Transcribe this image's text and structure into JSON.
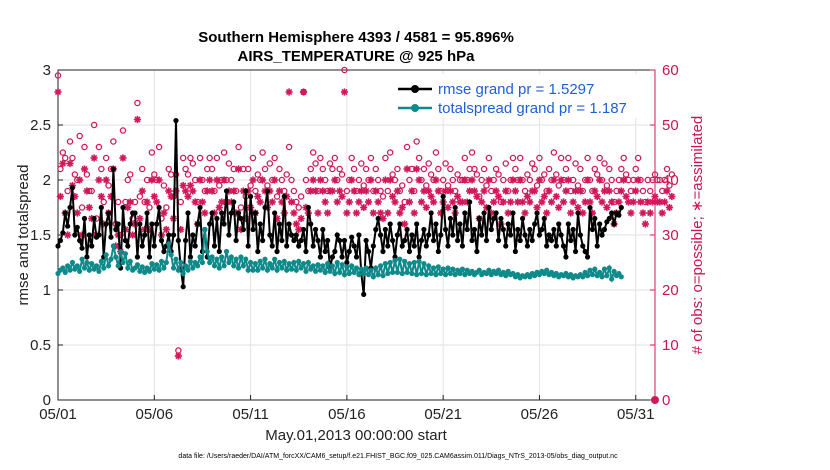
{
  "colors": {
    "rmse": "#000000",
    "spread": "#0e8a8a",
    "obs": "#d0185a",
    "grid": "#e2e2e2",
    "legend_text": "#1f5fd6"
  },
  "chart_data": {
    "type": "line",
    "title": "Southern Hemisphere 4393 / 4581 = 95.896%",
    "subtitle": "AIRS_TEMPERATURE @ 925 hPa",
    "xlabel": "May.01,2013 00:00:00 start",
    "ylabel_left": "rmse and totalspread",
    "ylabel_right": "# of obs: o=possible; ∗=assimilated",
    "footnote": "data file: /Users/raeder/DAI/ATM_forcXX/CAM6_setup/f.e21.FHIST_BGC.f09_025.CAM6assim.011/Diags_NTrS_2013-05/obs_diag_output.nc",
    "x_range": [
      1,
      32
    ],
    "ylim_left": [
      0,
      3
    ],
    "ylim_right": [
      0,
      60
    ],
    "x_ticks": [
      {
        "value": 1,
        "label": "05/01"
      },
      {
        "value": 6,
        "label": "05/06"
      },
      {
        "value": 11,
        "label": "05/11"
      },
      {
        "value": 16,
        "label": "05/16"
      },
      {
        "value": 21,
        "label": "05/21"
      },
      {
        "value": 26,
        "label": "05/26"
      },
      {
        "value": 31,
        "label": "05/31"
      }
    ],
    "y_ticks_left": [
      {
        "value": 0,
        "label": "0"
      },
      {
        "value": 0.5,
        "label": "0.5"
      },
      {
        "value": 1,
        "label": "1"
      },
      {
        "value": 1.5,
        "label": "1.5"
      },
      {
        "value": 2,
        "label": "2"
      },
      {
        "value": 2.5,
        "label": "2.5"
      },
      {
        "value": 3,
        "label": "3"
      }
    ],
    "y_ticks_right": [
      {
        "value": 0,
        "label": "0"
      },
      {
        "value": 10,
        "label": "10"
      },
      {
        "value": 20,
        "label": "20"
      },
      {
        "value": 30,
        "label": "30"
      },
      {
        "value": 40,
        "label": "40"
      },
      {
        "value": 50,
        "label": "50"
      },
      {
        "value": 60,
        "label": "60"
      }
    ],
    "legend": {
      "position": "top-right",
      "entries": [
        {
          "series": "rmse",
          "label": "rmse grand pr = 1.5297"
        },
        {
          "series": "spread",
          "label": "totalspread grand pr = 1.187"
        }
      ]
    },
    "x_step": 0.125,
    "series": [
      {
        "name": "rmse",
        "axis": "left",
        "marker": "filled-circle",
        "values": [
          1.4,
          1.45,
          1.52,
          1.7,
          1.58,
          1.75,
          1.93,
          1.5,
          1.57,
          1.45,
          1.38,
          1.65,
          1.3,
          1.5,
          1.4,
          1.65,
          1.48,
          1.5,
          1.75,
          1.3,
          1.6,
          1.7,
          1.48,
          2.1,
          1.55,
          1.6,
          1.2,
          1.75,
          1.45,
          1.4,
          1.6,
          1.7,
          1.7,
          1.3,
          1.6,
          1.4,
          1.5,
          1.7,
          1.3,
          1.6,
          1.4,
          1.6,
          1.75,
          1.45,
          1.35,
          1.4,
          1.5,
          1.35,
          1.5,
          2.54,
          1.45,
          1.2,
          1.03,
          1.45,
          1.7,
          1.3,
          1.5,
          1.4,
          1.6,
          1.75,
          1.35,
          1.55,
          1.3,
          1.6,
          1.7,
          1.4,
          1.65,
          1.35,
          1.7,
          1.6,
          1.9,
          1.5,
          1.7,
          1.8,
          1.45,
          1.7,
          1.65,
          1.55,
          1.9,
          1.4,
          1.85,
          1.55,
          1.7,
          1.35,
          1.6,
          1.45,
          1.75,
          1.9,
          1.5,
          1.4,
          1.7,
          1.35,
          1.6,
          1.45,
          1.85,
          1.4,
          1.6,
          1.5,
          1.45,
          1.5,
          1.4,
          1.45,
          1.55,
          1.35,
          1.75,
          1.6,
          1.4,
          1.55,
          1.45,
          1.3,
          1.55,
          1.35,
          1.45,
          1.2,
          1.3,
          1.35,
          1.5,
          1.45,
          1.3,
          1.45,
          1.25,
          1.35,
          1.48,
          1.4,
          1.3,
          1.5,
          1.15,
          0.96,
          1.45,
          1.35,
          1.2,
          1.4,
          1.55,
          1.65,
          1.5,
          1.35,
          1.55,
          1.4,
          1.6,
          1.45,
          1.3,
          1.5,
          1.6,
          1.4,
          1.45,
          1.55,
          1.35,
          1.5,
          1.4,
          1.6,
          1.3,
          1.45,
          1.55,
          1.4,
          1.5,
          1.7,
          1.45,
          1.6,
          1.35,
          1.5,
          1.85,
          1.55,
          1.4,
          1.65,
          1.5,
          1.75,
          1.45,
          1.6,
          1.4,
          1.7,
          1.55,
          1.8,
          1.45,
          1.55,
          1.35,
          1.65,
          1.5,
          1.7,
          1.45,
          1.75,
          1.55,
          1.65,
          1.7,
          1.45,
          1.65,
          1.55,
          1.4,
          1.6,
          1.5,
          1.7,
          1.35,
          1.55,
          1.45,
          1.65,
          1.5,
          1.4,
          1.55,
          1.45,
          1.6,
          1.7,
          1.5,
          1.55,
          1.65,
          1.4,
          1.5,
          1.45,
          1.55,
          1.4,
          1.6,
          1.5,
          1.4,
          1.3,
          1.6,
          1.45,
          1.55,
          1.35,
          1.7,
          1.5,
          1.4,
          1.35,
          1.3,
          1.75,
          1.55,
          1.65,
          1.4,
          1.6,
          1.5,
          1.55,
          1.62,
          1.65,
          1.7,
          1.6,
          1.7,
          1.68,
          1.75
        ]
      },
      {
        "name": "spread",
        "axis": "left",
        "marker": "filled-circle",
        "values": [
          1.15,
          1.18,
          1.2,
          1.16,
          1.22,
          1.18,
          1.25,
          1.19,
          1.22,
          1.17,
          1.28,
          1.2,
          1.25,
          1.18,
          1.24,
          1.19,
          1.22,
          1.17,
          1.26,
          1.2,
          1.32,
          1.22,
          1.28,
          1.4,
          1.3,
          1.22,
          1.35,
          1.25,
          1.33,
          1.2,
          1.26,
          1.18,
          1.2,
          1.23,
          1.17,
          1.21,
          1.16,
          1.2,
          1.17,
          1.24,
          1.19,
          1.23,
          1.18,
          1.26,
          1.2,
          1.25,
          1.42,
          1.32,
          1.2,
          1.28,
          1.18,
          1.25,
          1.15,
          1.22,
          1.18,
          1.26,
          1.2,
          1.25,
          1.22,
          1.3,
          1.25,
          1.55,
          1.35,
          1.25,
          1.3,
          1.22,
          1.28,
          1.2,
          1.3,
          1.22,
          1.35,
          1.25,
          1.3,
          1.22,
          1.28,
          1.2,
          1.3,
          1.22,
          1.28,
          1.18,
          1.25,
          1.18,
          1.24,
          1.18,
          1.26,
          1.2,
          1.28,
          1.18,
          1.24,
          1.2,
          1.28,
          1.18,
          1.25,
          1.2,
          1.26,
          1.18,
          1.24,
          1.19,
          1.25,
          1.18,
          1.26,
          1.2,
          1.24,
          1.17,
          1.25,
          1.19,
          1.22,
          1.17,
          1.23,
          1.18,
          1.22,
          1.16,
          1.24,
          1.17,
          1.22,
          1.15,
          1.25,
          1.16,
          1.23,
          1.14,
          1.21,
          1.15,
          1.22,
          1.16,
          1.2,
          1.14,
          1.19,
          1.15,
          1.2,
          1.14,
          1.18,
          1.12,
          1.2,
          1.14,
          1.22,
          1.13,
          1.24,
          1.15,
          1.25,
          1.16,
          1.27,
          1.16,
          1.28,
          1.15,
          1.26,
          1.16,
          1.24,
          1.15,
          1.25,
          1.14,
          1.26,
          1.15,
          1.24,
          1.14,
          1.22,
          1.15,
          1.2,
          1.14,
          1.21,
          1.15,
          1.19,
          1.14,
          1.2,
          1.15,
          1.19,
          1.14,
          1.18,
          1.15,
          1.19,
          1.14,
          1.18,
          1.15,
          1.17,
          1.14,
          1.16,
          1.18,
          1.14,
          1.16,
          1.15,
          1.18,
          1.14,
          1.17,
          1.15,
          1.18,
          1.14,
          1.16,
          1.13,
          1.17,
          1.14,
          1.15,
          1.12,
          1.14,
          1.11,
          1.13,
          1.12,
          1.14,
          1.12,
          1.15,
          1.13,
          1.16,
          1.14,
          1.17,
          1.15,
          1.18,
          1.14,
          1.16,
          1.13,
          1.15,
          1.12,
          1.14,
          1.13,
          1.15,
          1.12,
          1.14,
          1.11,
          1.13,
          1.12,
          1.14,
          1.12,
          1.16,
          1.13,
          1.18,
          1.14,
          1.19,
          1.13,
          1.16,
          1.12,
          1.19,
          1.13,
          1.2,
          1.1,
          1.17,
          1.13,
          1.15,
          1.12
        ]
      },
      {
        "name": "possible",
        "axis": "right",
        "marker": "open-circle",
        "values": [
          59,
          42,
          45,
          44,
          38,
          47,
          44,
          41,
          40,
          48,
          35,
          46,
          41,
          38,
          38,
          50,
          33,
          46,
          42,
          36,
          44,
          39,
          42,
          47,
          32,
          36,
          30,
          49,
          36,
          40,
          41,
          33,
          36,
          54,
          37,
          42,
          36,
          40,
          35,
          45,
          41,
          40,
          46,
          33,
          39,
          35,
          42,
          41,
          37,
          41,
          9,
          36,
          44,
          42,
          41,
          44,
          43,
          40,
          36,
          44,
          40,
          38,
          42,
          44,
          42,
          38,
          44,
          39,
          40,
          45,
          40,
          43,
          40,
          42,
          38,
          46,
          35,
          42,
          37,
          42,
          39,
          44,
          38,
          41,
          40,
          45,
          42,
          39,
          43,
          40,
          44,
          37,
          42,
          40,
          38,
          41,
          46,
          40,
          38,
          36,
          35,
          37,
          56,
          40,
          38,
          42,
          45,
          43,
          38,
          44,
          42,
          40,
          38,
          43,
          42,
          44,
          40,
          42,
          41,
          60,
          38,
          40,
          44,
          42,
          38,
          40,
          43,
          39,
          42,
          40,
          44,
          38,
          42,
          40,
          38,
          37,
          44,
          38,
          45,
          41,
          40,
          42,
          38,
          39,
          36,
          46,
          40,
          42,
          38,
          47,
          44,
          40,
          42,
          39,
          43,
          41,
          40,
          45,
          42,
          38,
          40,
          43,
          39,
          42,
          40,
          38,
          41,
          40,
          40,
          44,
          40,
          42,
          45,
          42,
          41,
          37,
          40,
          42,
          39,
          44,
          38,
          40,
          42,
          41,
          36,
          40,
          43,
          38,
          40,
          44,
          42,
          40,
          44,
          40,
          38,
          41,
          40,
          43,
          42,
          39,
          44,
          40,
          41,
          38,
          42,
          40,
          45,
          41,
          39,
          44,
          40,
          42,
          44,
          38,
          40,
          43,
          39,
          42,
          38,
          40,
          44,
          40,
          38,
          42,
          41,
          44,
          40,
          43,
          39,
          42,
          40,
          36,
          38,
          40,
          42,
          44,
          41,
          40,
          38,
          40,
          42,
          44,
          40,
          38,
          36,
          40,
          38,
          40,
          41,
          40,
          40,
          38,
          40,
          42,
          39,
          41
        ]
      },
      {
        "name": "assimilated",
        "axis": "right",
        "marker": "asterisk",
        "values": [
          56,
          37,
          43,
          34,
          30,
          43,
          39,
          37,
          34,
          40,
          30,
          42,
          38,
          35,
          33,
          44,
          30,
          40,
          37,
          32,
          40,
          34,
          37,
          42,
          28,
          30,
          27,
          44,
          31,
          35,
          36,
          30,
          32,
          51,
          33,
          38,
          31,
          36,
          31,
          40,
          37,
          36,
          40,
          30,
          34,
          31,
          38,
          37,
          33,
          38,
          8,
          31,
          39,
          38,
          37,
          39,
          38,
          36,
          32,
          40,
          36,
          34,
          38,
          40,
          38,
          34,
          40,
          35,
          36,
          40,
          36,
          38,
          36,
          38,
          34,
          42,
          31,
          38,
          33,
          38,
          35,
          40,
          34,
          37,
          36,
          40,
          38,
          35,
          38,
          36,
          40,
          33,
          38,
          36,
          34,
          37,
          56,
          36,
          34,
          32,
          31,
          33,
          56,
          35,
          34,
          38,
          40,
          38,
          34,
          40,
          38,
          36,
          34,
          38,
          38,
          40,
          36,
          38,
          37,
          56,
          34,
          36,
          40,
          38,
          34,
          36,
          38,
          35,
          38,
          36,
          40,
          34,
          38,
          36,
          34,
          33,
          40,
          34,
          40,
          37,
          36,
          38,
          34,
          35,
          32,
          42,
          36,
          38,
          34,
          42,
          40,
          36,
          38,
          35,
          38,
          37,
          36,
          40,
          38,
          34,
          36,
          38,
          35,
          38,
          36,
          34,
          37,
          36,
          36,
          40,
          36,
          38,
          40,
          38,
          37,
          33,
          36,
          38,
          35,
          40,
          34,
          36,
          38,
          37,
          32,
          36,
          38,
          34,
          36,
          40,
          38,
          36,
          40,
          36,
          34,
          37,
          36,
          38,
          38,
          35,
          40,
          36,
          37,
          34,
          38,
          36,
          40,
          37,
          35,
          40,
          36,
          38,
          40,
          34,
          36,
          38,
          35,
          38,
          34,
          36,
          40,
          36,
          34,
          38,
          37,
          40,
          36,
          38,
          35,
          38,
          36,
          32,
          34,
          36,
          38,
          40,
          37,
          36,
          34,
          36,
          38,
          40,
          36,
          34,
          32,
          36,
          34,
          36,
          37,
          36,
          36,
          34,
          36,
          38,
          35,
          37
        ]
      }
    ]
  }
}
